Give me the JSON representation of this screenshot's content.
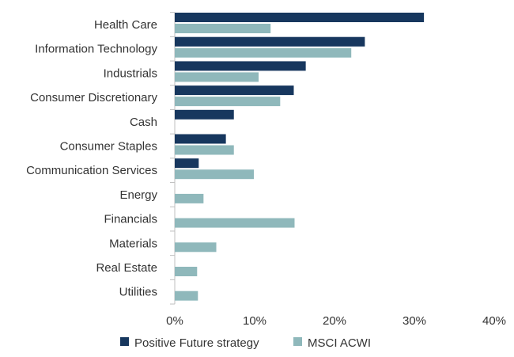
{
  "chart_data": {
    "type": "bar",
    "orientation": "horizontal",
    "categories": [
      "Health Care",
      "Information Technology",
      "Industrials",
      "Consumer Discretionary",
      "Cash",
      "Consumer Staples",
      "Communication Services",
      "Energy",
      "Financials",
      "Materials",
      "Real Estate",
      "Utilities"
    ],
    "series": [
      {
        "name": "Positive Future strategy",
        "color": "#17375e",
        "values": [
          31.2,
          23.8,
          16.4,
          14.9,
          7.4,
          6.4,
          3.0,
          0,
          0,
          0,
          0,
          0
        ]
      },
      {
        "name": "MSCI ACWI",
        "color": "#8fb8bb",
        "values": [
          12.0,
          22.1,
          10.5,
          13.2,
          0,
          7.4,
          9.9,
          3.6,
          15.0,
          5.2,
          2.8,
          2.9
        ]
      }
    ],
    "xlim": [
      0,
      40
    ],
    "x_ticks": [
      "0%",
      "10%",
      "20%",
      "30%",
      "40%"
    ],
    "grid": false,
    "legend_position": "bottom"
  }
}
